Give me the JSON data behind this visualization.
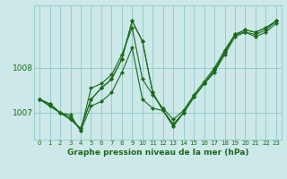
{
  "title": "Graphe pression niveau de la mer (hPa)",
  "bg_color": "#cce8e8",
  "grid_color": "#99cccc",
  "line_color": "#1a6b1a",
  "marker_color": "#1a6b1a",
  "ylim": [
    1006.4,
    1009.4
  ],
  "yticks": [
    1007.0,
    1008.0
  ],
  "xlim": [
    -0.5,
    23.5
  ],
  "xticks": [
    0,
    1,
    2,
    3,
    4,
    5,
    6,
    7,
    8,
    9,
    10,
    11,
    12,
    13,
    14,
    15,
    16,
    17,
    18,
    19,
    20,
    21,
    22,
    23
  ],
  "figsize": [
    3.2,
    2.0
  ],
  "dpi": 100,
  "series": [
    [
      1007.3,
      1007.2,
      1007.0,
      1006.85,
      1006.65,
      1007.3,
      1007.55,
      1007.75,
      1008.2,
      1009.05,
      1008.6,
      1007.45,
      1007.05,
      1006.7,
      1007.0,
      1007.35,
      1007.65,
      1007.95,
      1008.35,
      1008.75,
      1008.85,
      1008.8,
      1008.9,
      1009.05
    ],
    [
      1007.3,
      1007.2,
      1007.0,
      1006.85,
      1006.65,
      1007.3,
      1007.55,
      1007.75,
      1008.2,
      1009.05,
      1008.6,
      1007.45,
      1007.05,
      1006.7,
      1007.0,
      1007.35,
      1007.65,
      1007.95,
      1008.35,
      1008.75,
      1008.85,
      1008.8,
      1008.9,
      1009.05
    ],
    [
      1007.3,
      1007.15,
      1007.0,
      1006.95,
      1006.6,
      1007.55,
      1007.65,
      1007.85,
      1008.3,
      1008.9,
      1007.75,
      1007.4,
      1007.1,
      1006.85,
      1007.05,
      1007.4,
      1007.7,
      1008.0,
      1008.4,
      1008.75,
      1008.8,
      1008.75,
      1008.85,
      1009.05
    ],
    [
      1007.3,
      1007.15,
      1007.0,
      1006.9,
      1006.6,
      1007.15,
      1007.25,
      1007.45,
      1007.9,
      1008.45,
      1007.3,
      1007.1,
      1007.05,
      1006.75,
      1007.0,
      1007.35,
      1007.65,
      1007.9,
      1008.3,
      1008.7,
      1008.8,
      1008.7,
      1008.8,
      1009.0
    ]
  ]
}
